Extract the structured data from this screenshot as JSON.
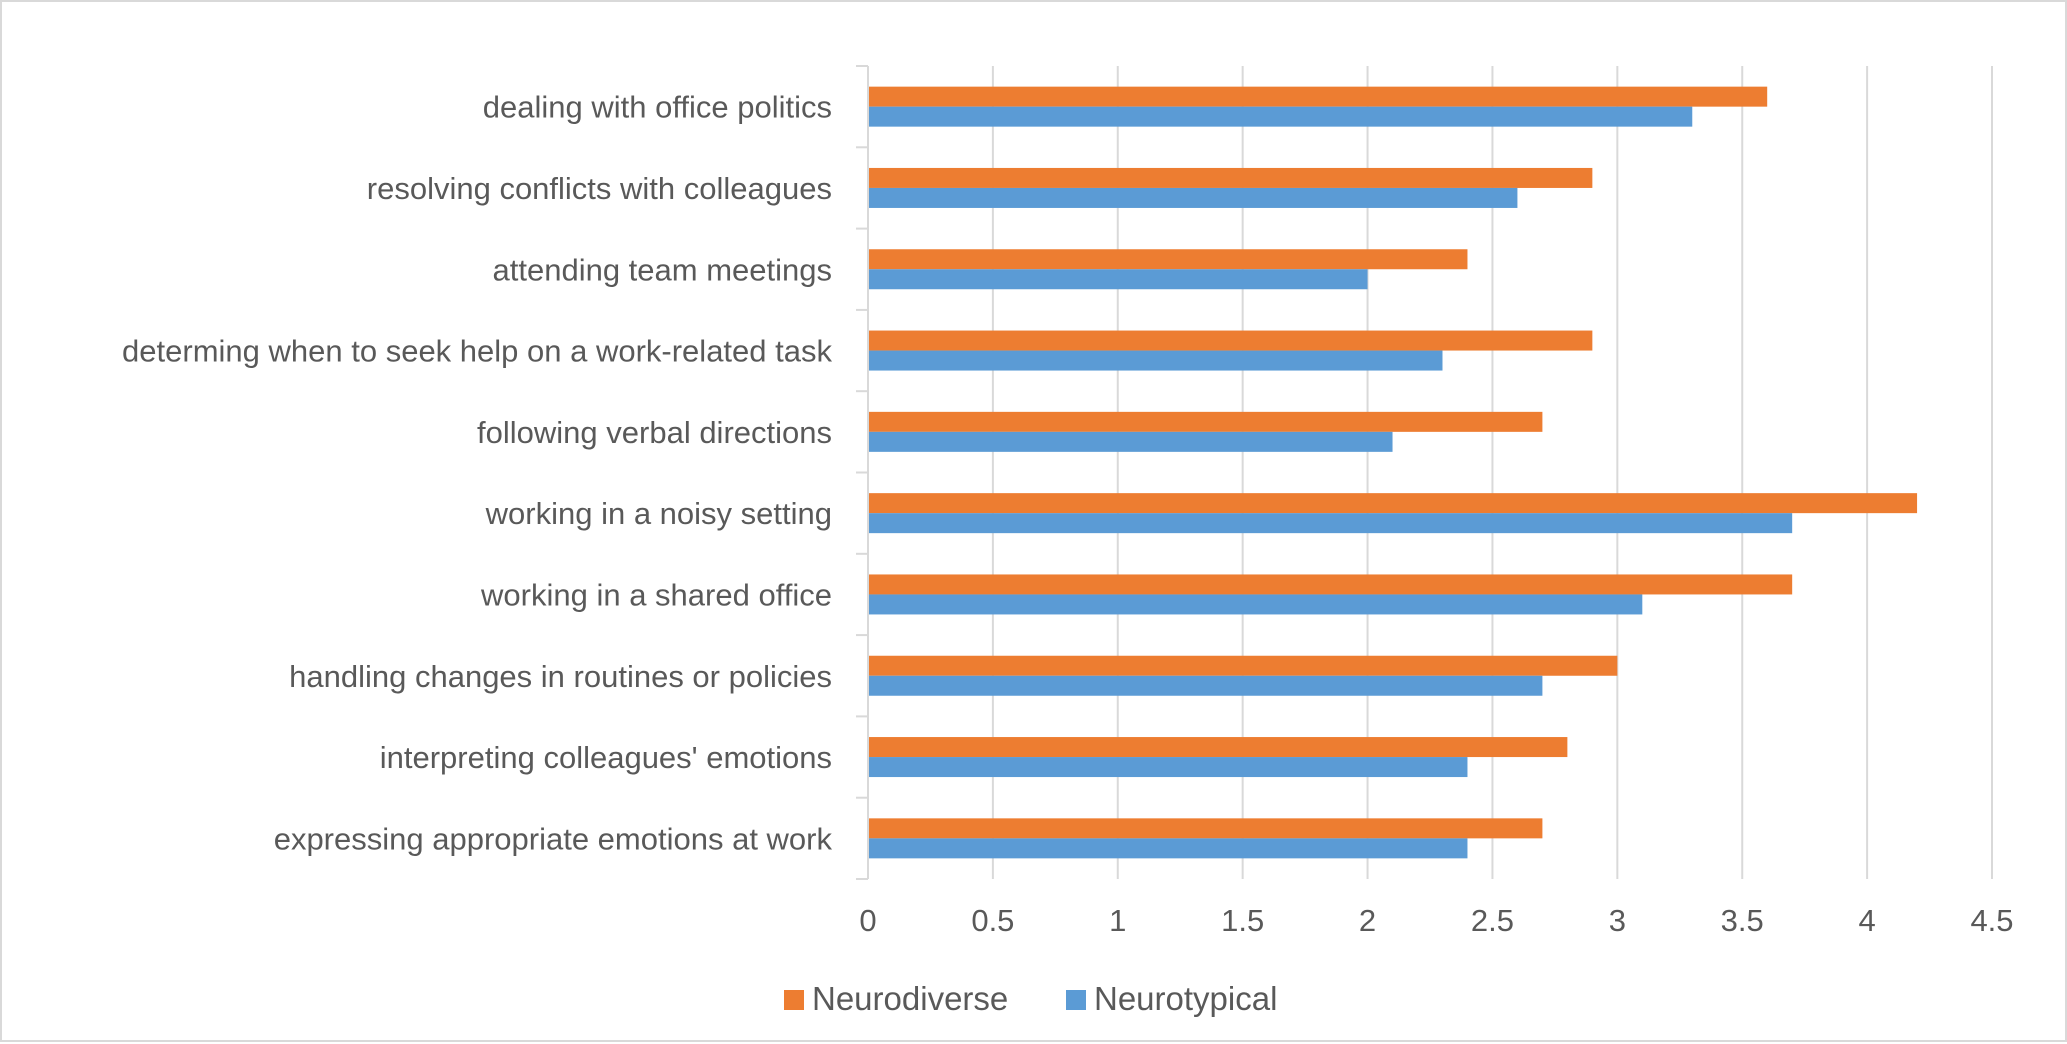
{
  "chart_data": {
    "type": "bar",
    "orientation": "horizontal",
    "categories": [
      "dealing with office politics",
      "resolving conflicts with colleagues",
      "attending team meetings",
      "determing when to seek help on a work-related task",
      "following verbal directions",
      "working in a noisy setting",
      "working in a shared office",
      "handling changes in routines or policies",
      "interpreting colleagues' emotions",
      "expressing appropriate emotions at work"
    ],
    "series": [
      {
        "name": "Neurodiverse",
        "color": "#ED7D31",
        "values": [
          3.6,
          2.9,
          2.4,
          2.9,
          2.7,
          4.2,
          3.7,
          3.0,
          2.8,
          2.7
        ]
      },
      {
        "name": "Neurotypical",
        "color": "#5B9BD5",
        "values": [
          3.3,
          2.6,
          2.0,
          2.3,
          2.1,
          3.7,
          3.1,
          2.7,
          2.4,
          2.4
        ]
      }
    ],
    "xlim": [
      0,
      4.5
    ],
    "xticks": [
      "0",
      "0.5",
      "1",
      "1.5",
      "2",
      "2.5",
      "3",
      "3.5",
      "4",
      "4.5"
    ],
    "grid": true,
    "legend_position": "bottom"
  }
}
